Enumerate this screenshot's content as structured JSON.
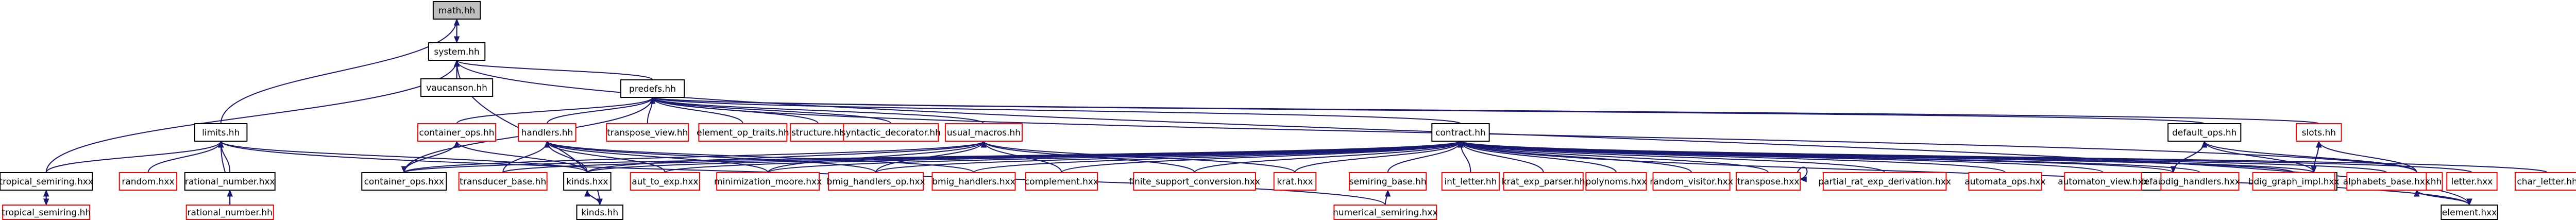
{
  "nodes": [
    {
      "id": "math",
      "label": "math.hh",
      "style": "focus"
    },
    {
      "id": "system",
      "label": "system.hh",
      "style": "black"
    },
    {
      "id": "vaucanson",
      "label": "vaucanson.hh",
      "style": "black"
    },
    {
      "id": "predefs",
      "label": "predefs.hh",
      "style": "black"
    },
    {
      "id": "limits",
      "label": "limits.hh",
      "style": "black"
    },
    {
      "id": "tropical_semiring_hxx",
      "label": "tropical_semiring.hxx",
      "style": "black"
    },
    {
      "id": "tropical_semiring_hh",
      "label": "tropical_semiring.hh",
      "style": "red"
    },
    {
      "id": "random_hxx",
      "label": "random.hxx",
      "style": "red"
    },
    {
      "id": "rational_number_hxx",
      "label": "rational_number.hxx",
      "style": "black"
    },
    {
      "id": "rational_number_hh",
      "label": "rational_number.hh",
      "style": "red"
    },
    {
      "id": "container_ops_hh",
      "label": "container_ops.hh",
      "style": "red"
    },
    {
      "id": "container_ops_hxx",
      "label": "container_ops.hxx",
      "style": "black"
    },
    {
      "id": "handlers_hh",
      "label": "handlers.hh",
      "style": "red"
    },
    {
      "id": "transpose_view_hh",
      "label": "transpose_view.hh",
      "style": "red"
    },
    {
      "id": "element_op_traits_hh",
      "label": "element_op_traits.hh",
      "style": "red"
    },
    {
      "id": "structure_hh",
      "label": "structure.hh",
      "style": "red"
    },
    {
      "id": "syntactic_decorator_hh",
      "label": "syntactic_decorator.hh",
      "style": "red"
    },
    {
      "id": "usual_macros_hh",
      "label": "usual_macros.hh",
      "style": "red"
    },
    {
      "id": "contract_hh",
      "label": "contract.hh",
      "style": "black"
    },
    {
      "id": "default_ops_hh",
      "label": "default_ops.hh",
      "style": "black"
    },
    {
      "id": "default_ops_hxx",
      "label": "default_ops.hxx",
      "style": "black"
    },
    {
      "id": "slots_hh",
      "label": "slots.hh",
      "style": "red"
    },
    {
      "id": "slots_hxx",
      "label": "slots.hxx",
      "style": "black"
    },
    {
      "id": "element_hh",
      "label": "element.hh",
      "style": "red"
    },
    {
      "id": "element_hxx",
      "label": "element.hxx",
      "style": "black"
    },
    {
      "id": "transducer_base_hh",
      "label": "transducer_base.hh",
      "style": "red"
    },
    {
      "id": "kinds_hxx",
      "label": "kinds.hxx",
      "style": "black"
    },
    {
      "id": "kinds_hh",
      "label": "kinds.hh",
      "style": "black"
    },
    {
      "id": "aut_to_exp_hxx",
      "label": "aut_to_exp.hxx",
      "style": "red"
    },
    {
      "id": "minimization_moore_hxx",
      "label": "minimization_moore.hxx",
      "style": "red"
    },
    {
      "id": "bmig_handlers_op_hxx",
      "label": "bmig_handlers_op.hxx",
      "style": "red"
    },
    {
      "id": "bmig_handlers_hxx",
      "label": "bmig_handlers.hxx",
      "style": "red"
    },
    {
      "id": "complement_hxx",
      "label": "complement.hxx",
      "style": "red"
    },
    {
      "id": "finite_support_conversion_hxx",
      "label": "finite_support_conversion.hxx",
      "style": "red"
    },
    {
      "id": "krat_hxx",
      "label": "krat.hxx",
      "style": "red"
    },
    {
      "id": "semiring_base_hh",
      "label": "semiring_base.hh",
      "style": "red"
    },
    {
      "id": "numerical_semiring_hxx",
      "label": "numerical_semiring.hxx",
      "style": "red"
    },
    {
      "id": "int_letter_hh",
      "label": "int_letter.hh",
      "style": "red"
    },
    {
      "id": "krat_exp_parser_hh",
      "label": "krat_exp_parser.hh",
      "style": "red"
    },
    {
      "id": "polynoms_hxx",
      "label": "polynoms.hxx",
      "style": "red"
    },
    {
      "id": "random_visitor_hxx",
      "label": "random_visitor.hxx",
      "style": "red"
    },
    {
      "id": "transpose_hxx",
      "label": "transpose.hxx",
      "style": "red"
    },
    {
      "id": "partial_rat_exp_derivation_hxx",
      "label": "partial_rat_exp_derivation.hxx",
      "style": "red"
    },
    {
      "id": "automata_ops_hxx",
      "label": "automata_ops.hxx",
      "style": "red"
    },
    {
      "id": "automaton_view_hxx",
      "label": "automaton_view.hxx",
      "style": "red"
    },
    {
      "id": "bdig_handlers_hxx",
      "label": "bdig_handlers.hxx",
      "style": "red"
    },
    {
      "id": "bdig_graph_impl_hxx",
      "label": "bdig_graph_impl.hxx",
      "style": "red"
    },
    {
      "id": "alphabets_base_hxx",
      "label": "alphabets_base.hxx",
      "style": "red"
    },
    {
      "id": "letter_hxx",
      "label": "letter.hxx",
      "style": "red"
    },
    {
      "id": "char_letter_hh",
      "label": "char_letter.hh",
      "style": "red"
    }
  ],
  "edges": [
    [
      "system",
      "math"
    ],
    [
      "math",
      "system"
    ],
    [
      "vaucanson",
      "system"
    ],
    [
      "predefs",
      "system"
    ],
    [
      "kinds_hh",
      "system"
    ],
    [
      "tropical_semiring_hxx",
      "system"
    ],
    [
      "element_hxx",
      "system"
    ],
    [
      "limits",
      "math"
    ],
    [
      "tropical_semiring_hxx",
      "limits"
    ],
    [
      "random_hxx",
      "limits"
    ],
    [
      "rational_number_hxx",
      "limits"
    ],
    [
      "rational_number_hh",
      "limits"
    ],
    [
      "kinds_hxx",
      "limits"
    ],
    [
      "numerical_semiring_hxx",
      "limits"
    ],
    [
      "tropical_semiring_hh",
      "tropical_semiring_hxx"
    ],
    [
      "tropical_semiring_hxx",
      "tropical_semiring_hh"
    ],
    [
      "rational_number_hh",
      "rational_number_hxx"
    ],
    [
      "container_ops_hh",
      "predefs"
    ],
    [
      "handlers_hh",
      "predefs"
    ],
    [
      "transpose_view_hh",
      "predefs"
    ],
    [
      "element_op_traits_hh",
      "predefs"
    ],
    [
      "structure_hh",
      "predefs"
    ],
    [
      "syntactic_decorator_hh",
      "predefs"
    ],
    [
      "usual_macros_hh",
      "predefs"
    ],
    [
      "contract_hh",
      "predefs"
    ],
    [
      "default_ops_hh",
      "predefs"
    ],
    [
      "slots_hh",
      "predefs"
    ],
    [
      "element_hh",
      "predefs"
    ],
    [
      "container_ops_hxx",
      "predefs"
    ],
    [
      "container_ops_hxx",
      "container_ops_hh"
    ],
    [
      "container_ops_hh",
      "container_ops_hxx"
    ],
    [
      "kinds_hxx",
      "container_ops_hh"
    ],
    [
      "transducer_base_hh",
      "handlers_hh"
    ],
    [
      "kinds_hxx",
      "handlers_hh"
    ],
    [
      "aut_to_exp_hxx",
      "handlers_hh"
    ],
    [
      "minimization_moore_hxx",
      "handlers_hh"
    ],
    [
      "bmig_handlers_op_hxx",
      "handlers_hh"
    ],
    [
      "bmig_handlers_hxx",
      "handlers_hh"
    ],
    [
      "container_ops_hxx",
      "usual_macros_hh"
    ],
    [
      "kinds_hxx",
      "usual_macros_hh"
    ],
    [
      "minimization_moore_hxx",
      "usual_macros_hh"
    ],
    [
      "bmig_handlers_op_hxx",
      "usual_macros_hh"
    ],
    [
      "complement_hxx",
      "usual_macros_hh"
    ],
    [
      "finite_support_conversion_hxx",
      "usual_macros_hh"
    ],
    [
      "krat_hxx",
      "usual_macros_hh"
    ],
    [
      "container_ops_hxx",
      "contract_hh"
    ],
    [
      "transducer_base_hh",
      "contract_hh"
    ],
    [
      "kinds_hxx",
      "contract_hh"
    ],
    [
      "aut_to_exp_hxx",
      "contract_hh"
    ],
    [
      "minimization_moore_hxx",
      "contract_hh"
    ],
    [
      "bmig_handlers_op_hxx",
      "contract_hh"
    ],
    [
      "bmig_handlers_hxx",
      "contract_hh"
    ],
    [
      "complement_hxx",
      "contract_hh"
    ],
    [
      "finite_support_conversion_hxx",
      "contract_hh"
    ],
    [
      "krat_hxx",
      "contract_hh"
    ],
    [
      "semiring_base_hh",
      "contract_hh"
    ],
    [
      "int_letter_hh",
      "contract_hh"
    ],
    [
      "krat_exp_parser_hh",
      "contract_hh"
    ],
    [
      "polynoms_hxx",
      "contract_hh"
    ],
    [
      "random_visitor_hxx",
      "contract_hh"
    ],
    [
      "transpose_hxx",
      "contract_hh"
    ],
    [
      "partial_rat_exp_derivation_hxx",
      "contract_hh"
    ],
    [
      "automata_ops_hxx",
      "contract_hh"
    ],
    [
      "automaton_view_hxx",
      "contract_hh"
    ],
    [
      "bdig_handlers_hxx",
      "contract_hh"
    ],
    [
      "bdig_graph_impl_hxx",
      "contract_hh"
    ],
    [
      "alphabets_base_hxx",
      "contract_hh"
    ],
    [
      "letter_hxx",
      "contract_hh"
    ],
    [
      "char_letter_hh",
      "contract_hh"
    ],
    [
      "default_ops_hxx",
      "contract_hh"
    ],
    [
      "slots_hxx",
      "contract_hh"
    ],
    [
      "element_hxx",
      "contract_hh"
    ],
    [
      "numerical_semiring_hxx",
      "semiring_base_hh"
    ],
    [
      "transpose_hxx",
      "transpose_hxx"
    ],
    [
      "default_ops_hxx",
      "default_ops_hh"
    ],
    [
      "default_ops_hh",
      "default_ops_hxx"
    ],
    [
      "slots_hxx",
      "default_ops_hh"
    ],
    [
      "element_hh",
      "default_ops_hh"
    ],
    [
      "slots_hxx",
      "slots_hh"
    ],
    [
      "slots_hh",
      "slots_hxx"
    ],
    [
      "element_hh",
      "slots_hh"
    ],
    [
      "element_hxx",
      "element_hh"
    ],
    [
      "element_hh",
      "element_hxx"
    ],
    [
      "kinds_hh",
      "kinds_hxx"
    ],
    [
      "kinds_hxx",
      "kinds_hh"
    ]
  ]
}
